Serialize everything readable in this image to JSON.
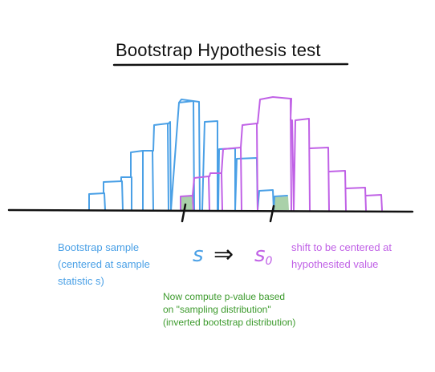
{
  "title": "Bootstrap Hypothesis test",
  "left_note": {
    "lines": [
      "Bootstrap sample",
      "(centered at sample",
      "statistic s)"
    ]
  },
  "right_note": {
    "lines": [
      "shift to be centered at",
      "hypothesited value"
    ]
  },
  "bottom_note": {
    "lines": [
      "Now compute p-value based",
      "on \"sampling distribution\"",
      "(inverted bootstrap distribution)"
    ]
  },
  "symbols": {
    "s": "s",
    "arrow": "⇒",
    "s0": "s",
    "s0_sub": "0"
  },
  "colors": {
    "blue": "#4aa0e6",
    "purple": "#c061e6",
    "green_fill": "#9bc99a",
    "axis": "#111111"
  }
}
